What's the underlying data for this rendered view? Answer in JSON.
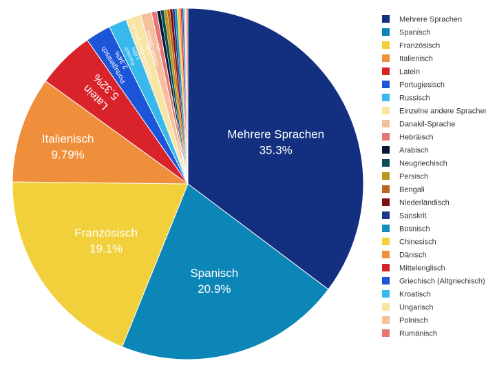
{
  "chart_data": {
    "type": "pie",
    "slices": [
      {
        "label": "Mehrere Sprachen",
        "value": 35.3,
        "display": "35.3%",
        "color": "#12307f"
      },
      {
        "label": "Spanisch",
        "value": 20.9,
        "display": "20.9%",
        "color": "#0c86b7"
      },
      {
        "label": "Französisch",
        "value": 19.1,
        "display": "19.1%",
        "color": "#f2d03b"
      },
      {
        "label": "Italienisch",
        "value": 9.79,
        "display": "9.79%",
        "color": "#f08f3b"
      },
      {
        "label": "Latein",
        "value": 5.32,
        "display": "5.32%",
        "color": "#d9232b"
      },
      {
        "label": "Portugiesisch",
        "value": 2.34,
        "display": "2.34%",
        "color": "#1c55d8"
      },
      {
        "label": "Russisch",
        "value": 1.65,
        "display": "1.65%",
        "color": "#38b9ec"
      },
      {
        "label": "Einzelne andere Sprachen",
        "value": 1.4,
        "display": "1.4%",
        "color": "#f8e4a3"
      },
      {
        "label": "Danakil-Sprache",
        "value": 1.0,
        "display": "1%",
        "color": "#f4c09b"
      },
      {
        "label": "Hebräisch",
        "value": 0.5,
        "display": "",
        "color": "#e87574"
      },
      {
        "label": "Arabisch",
        "value": 0.35,
        "display": "",
        "color": "#081733"
      },
      {
        "label": "Neugriechisch",
        "value": 0.3,
        "display": "",
        "color": "#0a4c57"
      },
      {
        "label": "Persisch",
        "value": 0.3,
        "display": "",
        "color": "#b59a19"
      },
      {
        "label": "Bengali",
        "value": 0.25,
        "display": "",
        "color": "#c0651d"
      },
      {
        "label": "Niederländisch",
        "value": 0.25,
        "display": "",
        "color": "#7b0f15"
      },
      {
        "label": "Sanskrit",
        "value": 0.2,
        "display": "",
        "color": "#183a8c"
      },
      {
        "label": "Bosnisch",
        "value": 0.2,
        "display": "",
        "color": "#118fbf"
      },
      {
        "label": "Chinesisch",
        "value": 0.18,
        "display": "",
        "color": "#f2d03b"
      },
      {
        "label": "Dänisch",
        "value": 0.15,
        "display": "",
        "color": "#f08f3b"
      },
      {
        "label": "Mittelenglisch",
        "value": 0.15,
        "display": "",
        "color": "#d9232b"
      },
      {
        "label": "Griechisch (Altgriechisch)",
        "value": 0.12,
        "display": "",
        "color": "#1c55d8"
      },
      {
        "label": "Kroatisch",
        "value": 0.1,
        "display": "",
        "color": "#38b9ec"
      },
      {
        "label": "Ungarisch",
        "value": 0.1,
        "display": "",
        "color": "#f8e4a3"
      },
      {
        "label": "Polnisch",
        "value": 0.1,
        "display": "",
        "color": "#f4c09b"
      },
      {
        "label": "Rumänisch",
        "value": 0.1,
        "display": "",
        "color": "#e87574"
      }
    ],
    "legend_position": "right"
  }
}
